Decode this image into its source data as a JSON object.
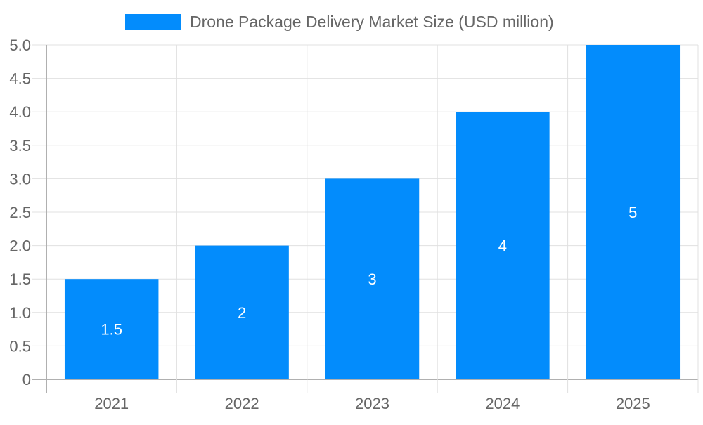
{
  "chart_data": {
    "type": "bar",
    "categories": [
      "2021",
      "2022",
      "2023",
      "2024",
      "2025"
    ],
    "series": [
      {
        "name": "Drone Package Delivery Market Size (USD million)",
        "values": [
          1.5,
          2,
          3,
          4,
          5
        ]
      }
    ],
    "data_labels": [
      "1.5",
      "2",
      "3",
      "4",
      "5"
    ],
    "yticks": [
      "0",
      "0.5",
      "1.0",
      "1.5",
      "2.0",
      "2.5",
      "3.0",
      "3.5",
      "4.0",
      "4.5",
      "5.0"
    ],
    "ylim": [
      0,
      5
    ],
    "grid": true,
    "legend": "top-center",
    "colors": {
      "bar": "#038cfc",
      "text": "#666666",
      "grid": "#e0e0e0",
      "axis": "#b0b0b0",
      "label": "#ffffff"
    }
  }
}
